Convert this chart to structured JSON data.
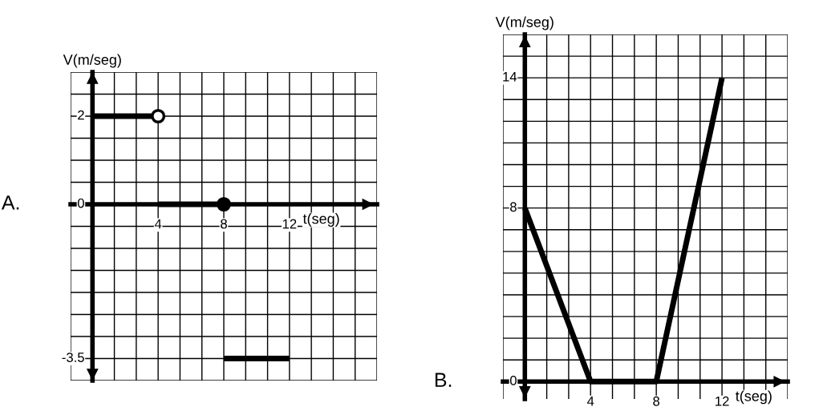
{
  "chart_data": [
    {
      "type": "line",
      "title": "A.",
      "xlabel": "t(seg)",
      "ylabel": "V(m/seg)",
      "grid": true,
      "xlim": [
        -1.333,
        17.333
      ],
      "xticks": [
        {
          "value": -1.333,
          "label": null
        },
        {
          "value": 0,
          "label": null
        },
        {
          "value": 1.333,
          "label": null
        },
        {
          "value": 2.667,
          "label": null
        },
        4,
        {
          "value": 5.333,
          "label": null
        },
        {
          "value": 6.667,
          "label": null
        },
        8,
        {
          "value": 9.333,
          "label": null
        },
        {
          "value": 10.667,
          "label": null
        },
        12,
        {
          "value": 13.333,
          "label": null
        },
        {
          "value": 14.667,
          "label": null
        },
        {
          "value": 16,
          "label": null
        },
        {
          "value": 17.333,
          "label": null
        }
      ],
      "ylim": [
        -4,
        3
      ],
      "yticks": [
        {
          "value": -4,
          "label": null
        },
        -3.5,
        {
          "value": -3,
          "label": null
        },
        {
          "value": -2.5,
          "label": null
        },
        {
          "value": -2,
          "label": null
        },
        {
          "value": -1.5,
          "label": null
        },
        {
          "value": -1,
          "label": null
        },
        {
          "value": -0.5,
          "label": null
        },
        0,
        {
          "value": 0.5,
          "label": null
        },
        {
          "value": 1,
          "label": null
        },
        {
          "value": 1.5,
          "label": null
        },
        2,
        {
          "value": 2.5,
          "label": null
        },
        {
          "value": 3,
          "label": null
        }
      ],
      "series": [
        {
          "color": "#000000",
          "x": [
            0,
            4
          ],
          "values": [
            2,
            2
          ]
        },
        {
          "color": "#000000",
          "x": [
            4,
            8
          ],
          "values": [
            0,
            0
          ]
        },
        {
          "color": "#000000",
          "x": [
            8,
            12
          ],
          "values": [
            -3.5,
            -3.5
          ]
        },
        {
          "type": "scatter",
          "color": "#ffffff",
          "marker": "circle",
          "x": [
            4
          ],
          "values": [
            2
          ]
        },
        {
          "type": "scatter",
          "color": "#000000",
          "marker": "circle",
          "x": [
            8
          ],
          "values": [
            0
          ]
        }
      ]
    },
    {
      "type": "line",
      "title": "B.",
      "xlabel": "t(seg)",
      "ylabel": "V(m/seg)",
      "grid": true,
      "xlim": [
        -1.333,
        16
      ],
      "xticks": [
        {
          "value": -1.333,
          "label": null
        },
        {
          "value": 0,
          "label": null
        },
        {
          "value": 1.333,
          "label": null
        },
        {
          "value": 2.667,
          "label": null
        },
        4,
        {
          "value": 5.333,
          "label": null
        },
        {
          "value": 6.667,
          "label": null
        },
        8,
        {
          "value": 9.333,
          "label": null
        },
        {
          "value": 10.667,
          "label": null
        },
        12,
        {
          "value": 13.333,
          "label": null
        },
        {
          "value": 14.667,
          "label": null
        },
        {
          "value": 16,
          "label": null
        }
      ],
      "ylim": [
        -0.8,
        16
      ],
      "yticks": [
        0,
        {
          "value": 1,
          "label": null
        },
        {
          "value": 2,
          "label": null
        },
        {
          "value": 3,
          "label": null
        },
        {
          "value": 4,
          "label": null
        },
        {
          "value": 5,
          "label": null
        },
        {
          "value": 6,
          "label": null
        },
        {
          "value": 7,
          "label": null
        },
        8,
        {
          "value": 9,
          "label": null
        },
        {
          "value": 10,
          "label": null
        },
        {
          "value": 11,
          "label": null
        },
        {
          "value": 12,
          "label": null
        },
        {
          "value": 13,
          "label": null
        },
        14,
        {
          "value": 15,
          "label": null
        },
        {
          "value": 16,
          "label": null
        }
      ],
      "series": [
        {
          "color": "#000000",
          "x": [
            0,
            4,
            8,
            12
          ],
          "values": [
            8,
            0,
            0,
            14
          ]
        }
      ]
    }
  ]
}
